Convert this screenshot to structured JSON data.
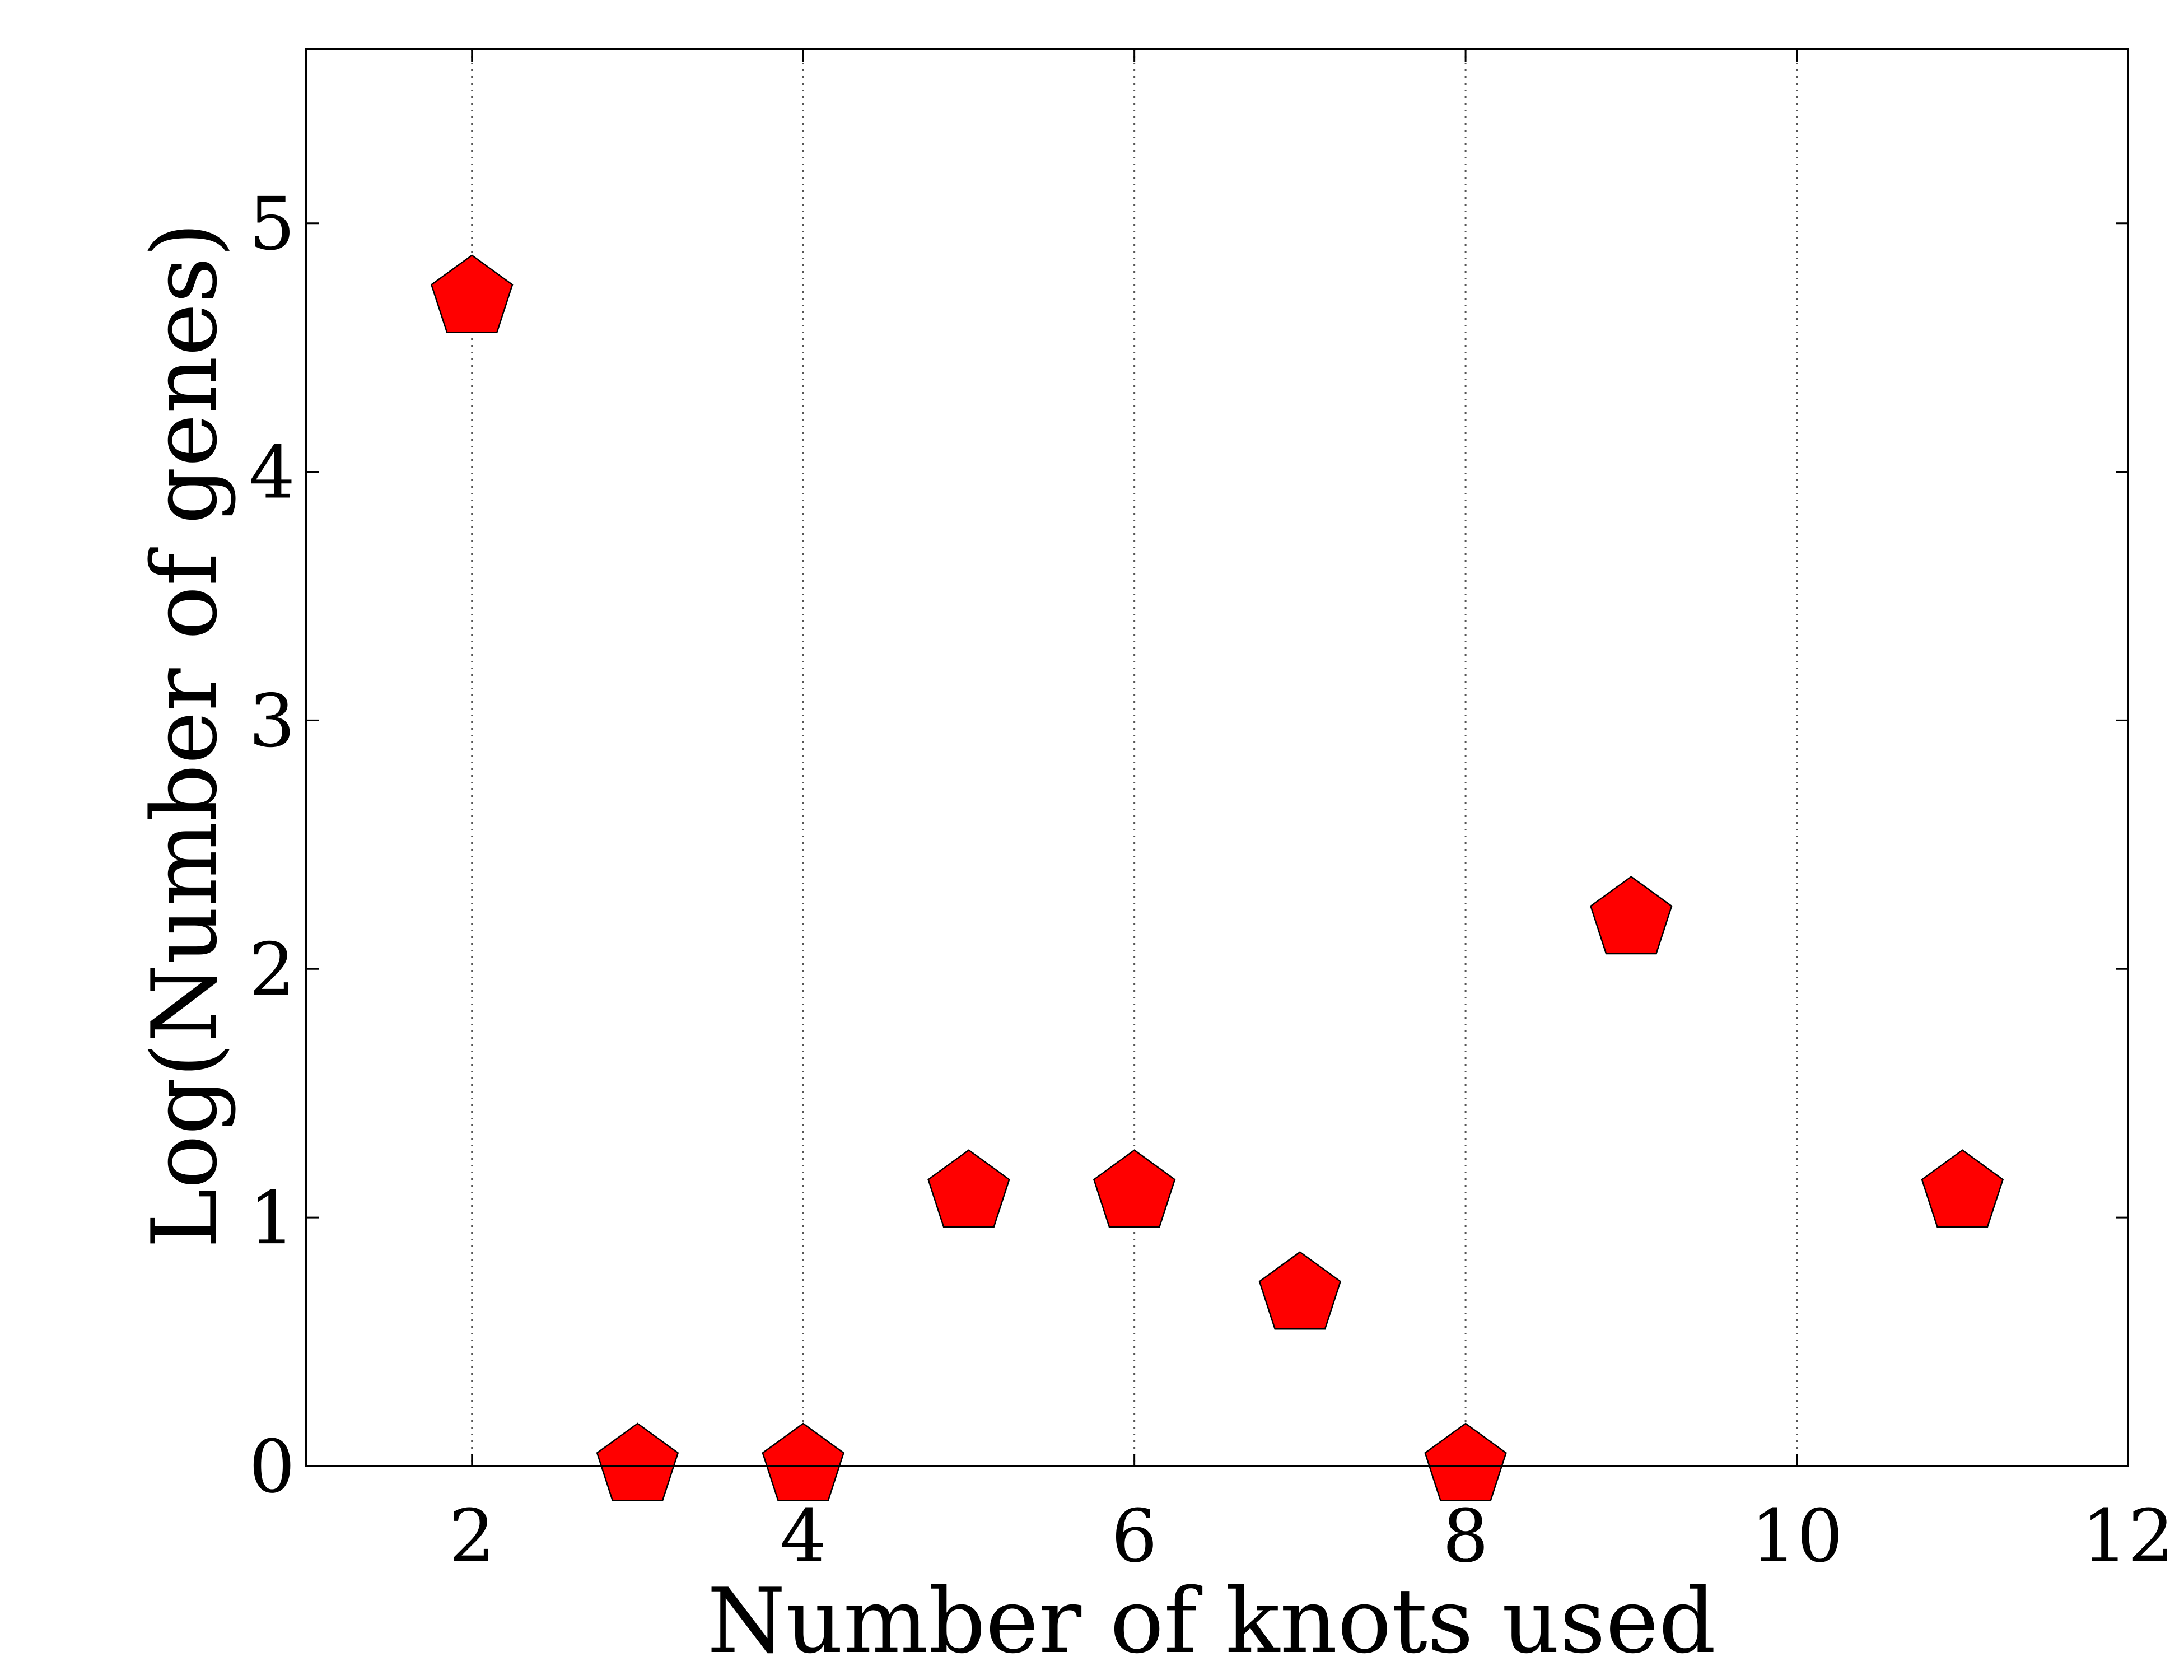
{
  "chart_data": {
    "type": "scatter",
    "title": "",
    "xlabel": "Number of knots used",
    "ylabel": "Log(Number of genes)",
    "xlim": [
      1,
      12
    ],
    "ylim": [
      0,
      5.7
    ],
    "xticks": [
      2,
      4,
      6,
      8,
      10,
      12
    ],
    "yticks": [
      0,
      1,
      2,
      3,
      4,
      5
    ],
    "grid": "x-only dotted",
    "marker": "pentagon",
    "marker_color": "#ff0000",
    "points": [
      {
        "x": 2,
        "y": 4.7
      },
      {
        "x": 3,
        "y": 0.0
      },
      {
        "x": 4,
        "y": 0.0
      },
      {
        "x": 5,
        "y": 1.1
      },
      {
        "x": 6,
        "y": 1.1
      },
      {
        "x": 7,
        "y": 0.69
      },
      {
        "x": 8,
        "y": 0.0
      },
      {
        "x": 9,
        "y": 2.2
      },
      {
        "x": 11,
        "y": 1.1
      }
    ]
  }
}
